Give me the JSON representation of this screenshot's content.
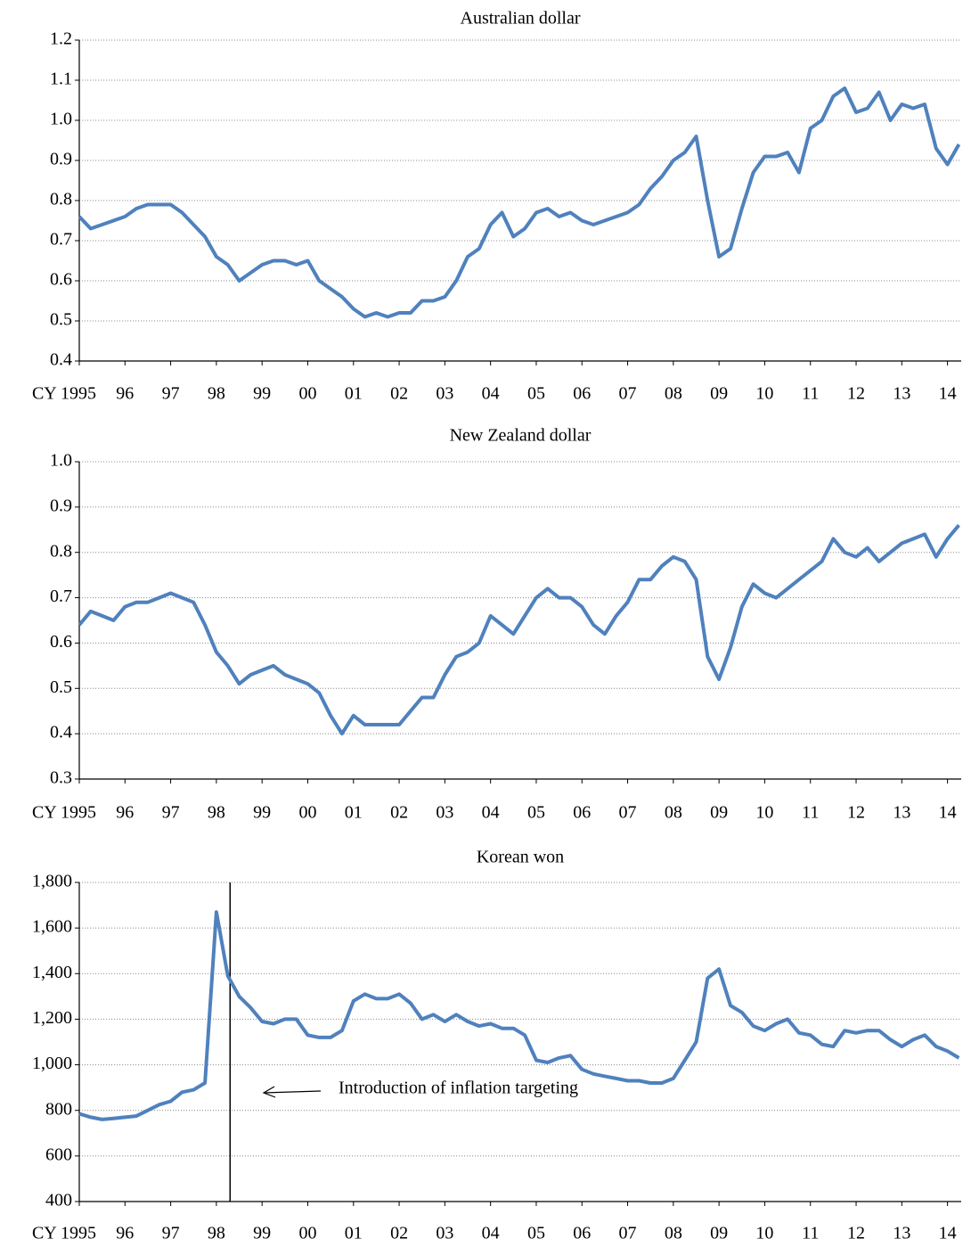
{
  "chart_data": [
    {
      "type": "line",
      "title": "Australian dollar",
      "x": [
        1995,
        1995.25,
        1995.5,
        1995.75,
        1996,
        1996.25,
        1996.5,
        1996.75,
        1997,
        1997.25,
        1997.5,
        1997.75,
        1998,
        1998.25,
        1998.5,
        1998.75,
        1999,
        1999.25,
        1999.5,
        1999.75,
        2000,
        2000.25,
        2000.5,
        2000.75,
        2001,
        2001.25,
        2001.5,
        2001.75,
        2002,
        2002.25,
        2002.5,
        2002.75,
        2003,
        2003.25,
        2003.5,
        2003.75,
        2004,
        2004.25,
        2004.5,
        2004.75,
        2005,
        2005.25,
        2005.5,
        2005.75,
        2006,
        2006.25,
        2006.5,
        2006.75,
        2007,
        2007.25,
        2007.5,
        2007.75,
        2008,
        2008.25,
        2008.5,
        2008.75,
        2009,
        2009.25,
        2009.5,
        2009.75,
        2010,
        2010.25,
        2010.5,
        2010.75,
        2011,
        2011.25,
        2011.5,
        2011.75,
        2012,
        2012.25,
        2012.5,
        2012.75,
        2013,
        2013.25,
        2013.5,
        2013.75,
        2014,
        2014.25
      ],
      "series": [
        {
          "color": "#4f81bd",
          "values": [
            0.76,
            0.73,
            0.74,
            0.75,
            0.76,
            0.78,
            0.79,
            0.79,
            0.79,
            0.77,
            0.74,
            0.71,
            0.66,
            0.64,
            0.6,
            0.62,
            0.64,
            0.65,
            0.65,
            0.64,
            0.65,
            0.6,
            0.58,
            0.56,
            0.53,
            0.51,
            0.52,
            0.51,
            0.52,
            0.52,
            0.55,
            0.55,
            0.56,
            0.6,
            0.66,
            0.68,
            0.74,
            0.77,
            0.71,
            0.73,
            0.77,
            0.78,
            0.76,
            0.77,
            0.75,
            0.74,
            0.75,
            0.76,
            0.77,
            0.79,
            0.83,
            0.86,
            0.9,
            0.92,
            0.96,
            0.8,
            0.66,
            0.68,
            0.78,
            0.87,
            0.91,
            0.91,
            0.92,
            0.87,
            0.98,
            1.0,
            1.06,
            1.08,
            1.02,
            1.03,
            1.07,
            1.0,
            1.04,
            1.03,
            1.04,
            0.93,
            0.89,
            0.94
          ]
        }
      ],
      "xlim": [
        1995,
        2014.3
      ],
      "xticks": [
        {
          "value": 1995,
          "label": "CY 1995"
        },
        {
          "value": 1996,
          "label": "96"
        },
        {
          "value": 1997,
          "label": "97"
        },
        {
          "value": 1998,
          "label": "98"
        },
        {
          "value": 1999,
          "label": "99"
        },
        {
          "value": 2000,
          "label": "00"
        },
        {
          "value": 2001,
          "label": "01"
        },
        {
          "value": 2002,
          "label": "02"
        },
        {
          "value": 2003,
          "label": "03"
        },
        {
          "value": 2004,
          "label": "04"
        },
        {
          "value": 2005,
          "label": "05"
        },
        {
          "value": 2006,
          "label": "06"
        },
        {
          "value": 2007,
          "label": "07"
        },
        {
          "value": 2008,
          "label": "08"
        },
        {
          "value": 2009,
          "label": "09"
        },
        {
          "value": 2010,
          "label": "10"
        },
        {
          "value": 2011,
          "label": "11"
        },
        {
          "value": 2012,
          "label": "12"
        },
        {
          "value": 2013,
          "label": "13"
        },
        {
          "value": 2014,
          "label": "14"
        }
      ],
      "ylim": [
        0.4,
        1.2
      ],
      "yticks": [
        0.4,
        0.5,
        0.6,
        0.7,
        0.8,
        0.9,
        {
          "value": 1,
          "label": "1.0"
        },
        1.1,
        1.2
      ],
      "grid": true
    },
    {
      "type": "line",
      "title": "New Zealand dollar",
      "x": [
        1995,
        1995.25,
        1995.5,
        1995.75,
        1996,
        1996.25,
        1996.5,
        1996.75,
        1997,
        1997.25,
        1997.5,
        1997.75,
        1998,
        1998.25,
        1998.5,
        1998.75,
        1999,
        1999.25,
        1999.5,
        1999.75,
        2000,
        2000.25,
        2000.5,
        2000.75,
        2001,
        2001.25,
        2001.5,
        2001.75,
        2002,
        2002.25,
        2002.5,
        2002.75,
        2003,
        2003.25,
        2003.5,
        2003.75,
        2004,
        2004.25,
        2004.5,
        2004.75,
        2005,
        2005.25,
        2005.5,
        2005.75,
        2006,
        2006.25,
        2006.5,
        2006.75,
        2007,
        2007.25,
        2007.5,
        2007.75,
        2008,
        2008.25,
        2008.5,
        2008.75,
        2009,
        2009.25,
        2009.5,
        2009.75,
        2010,
        2010.25,
        2010.5,
        2010.75,
        2011,
        2011.25,
        2011.5,
        2011.75,
        2012,
        2012.25,
        2012.5,
        2012.75,
        2013,
        2013.25,
        2013.5,
        2013.75,
        2014,
        2014.25
      ],
      "series": [
        {
          "color": "#4f81bd",
          "values": [
            0.64,
            0.67,
            0.66,
            0.65,
            0.68,
            0.69,
            0.69,
            0.7,
            0.71,
            0.7,
            0.69,
            0.64,
            0.58,
            0.55,
            0.51,
            0.53,
            0.54,
            0.55,
            0.53,
            0.52,
            0.51,
            0.49,
            0.44,
            0.4,
            0.44,
            0.42,
            0.42,
            0.42,
            0.42,
            0.45,
            0.48,
            0.48,
            0.53,
            0.57,
            0.58,
            0.6,
            0.66,
            0.64,
            0.62,
            0.66,
            0.7,
            0.72,
            0.7,
            0.7,
            0.68,
            0.64,
            0.62,
            0.66,
            0.69,
            0.74,
            0.74,
            0.77,
            0.79,
            0.78,
            0.74,
            0.57,
            0.52,
            0.59,
            0.68,
            0.73,
            0.71,
            0.7,
            0.72,
            0.74,
            0.76,
            0.78,
            0.83,
            0.8,
            0.79,
            0.81,
            0.78,
            0.8,
            0.82,
            0.83,
            0.84,
            0.79,
            0.83,
            0.86
          ]
        }
      ],
      "xlim": [
        1995,
        2014.3
      ],
      "xticks": [
        {
          "value": 1995,
          "label": "CY 1995"
        },
        {
          "value": 1996,
          "label": "96"
        },
        {
          "value": 1997,
          "label": "97"
        },
        {
          "value": 1998,
          "label": "98"
        },
        {
          "value": 1999,
          "label": "99"
        },
        {
          "value": 2000,
          "label": "00"
        },
        {
          "value": 2001,
          "label": "01"
        },
        {
          "value": 2002,
          "label": "02"
        },
        {
          "value": 2003,
          "label": "03"
        },
        {
          "value": 2004,
          "label": "04"
        },
        {
          "value": 2005,
          "label": "05"
        },
        {
          "value": 2006,
          "label": "06"
        },
        {
          "value": 2007,
          "label": "07"
        },
        {
          "value": 2008,
          "label": "08"
        },
        {
          "value": 2009,
          "label": "09"
        },
        {
          "value": 2010,
          "label": "10"
        },
        {
          "value": 2011,
          "label": "11"
        },
        {
          "value": 2012,
          "label": "12"
        },
        {
          "value": 2013,
          "label": "13"
        },
        {
          "value": 2014,
          "label": "14"
        }
      ],
      "ylim": [
        0.3,
        1.0
      ],
      "yticks": [
        0.3,
        0.4,
        0.5,
        0.6,
        0.7,
        0.8,
        0.9,
        {
          "value": 1,
          "label": "1.0"
        }
      ],
      "grid": true
    },
    {
      "type": "line",
      "title": "Korean won",
      "x": [
        1995,
        1995.25,
        1995.5,
        1995.75,
        1996,
        1996.25,
        1996.5,
        1996.75,
        1997,
        1997.25,
        1997.5,
        1997.75,
        1998,
        1998.25,
        1998.5,
        1998.75,
        1999,
        1999.25,
        1999.5,
        1999.75,
        2000,
        2000.25,
        2000.5,
        2000.75,
        2001,
        2001.25,
        2001.5,
        2001.75,
        2002,
        2002.25,
        2002.5,
        2002.75,
        2003,
        2003.25,
        2003.5,
        2003.75,
        2004,
        2004.25,
        2004.5,
        2004.75,
        2005,
        2005.25,
        2005.5,
        2005.75,
        2006,
        2006.25,
        2006.5,
        2006.75,
        2007,
        2007.25,
        2007.5,
        2007.75,
        2008,
        2008.25,
        2008.5,
        2008.75,
        2009,
        2009.25,
        2009.5,
        2009.75,
        2010,
        2010.25,
        2010.5,
        2010.75,
        2011,
        2011.25,
        2011.5,
        2011.75,
        2012,
        2012.25,
        2012.5,
        2012.75,
        2013,
        2013.25,
        2013.5,
        2013.75,
        2014,
        2014.25
      ],
      "series": [
        {
          "color": "#4f81bd",
          "values": [
            785,
            770,
            760,
            765,
            770,
            775,
            800,
            825,
            840,
            880,
            890,
            920,
            1670,
            1390,
            1300,
            1250,
            1190,
            1180,
            1200,
            1200,
            1130,
            1120,
            1120,
            1150,
            1280,
            1310,
            1290,
            1290,
            1310,
            1270,
            1200,
            1220,
            1190,
            1220,
            1190,
            1170,
            1180,
            1160,
            1160,
            1130,
            1020,
            1010,
            1030,
            1040,
            980,
            960,
            950,
            940,
            930,
            930,
            920,
            920,
            940,
            1020,
            1100,
            1380,
            1420,
            1260,
            1230,
            1170,
            1150,
            1180,
            1200,
            1140,
            1130,
            1090,
            1080,
            1150,
            1140,
            1150,
            1150,
            1110,
            1080,
            1110,
            1130,
            1080,
            1060,
            1030
          ]
        }
      ],
      "xlim": [
        1995,
        2014.3
      ],
      "xticks": [
        {
          "value": 1995,
          "label": "CY 1995"
        },
        {
          "value": 1996,
          "label": "96"
        },
        {
          "value": 1997,
          "label": "97"
        },
        {
          "value": 1998,
          "label": "98"
        },
        {
          "value": 1999,
          "label": "99"
        },
        {
          "value": 2000,
          "label": "00"
        },
        {
          "value": 2001,
          "label": "01"
        },
        {
          "value": 2002,
          "label": "02"
        },
        {
          "value": 2003,
          "label": "03"
        },
        {
          "value": 2004,
          "label": "04"
        },
        {
          "value": 2005,
          "label": "05"
        },
        {
          "value": 2006,
          "label": "06"
        },
        {
          "value": 2007,
          "label": "07"
        },
        {
          "value": 2008,
          "label": "08"
        },
        {
          "value": 2009,
          "label": "09"
        },
        {
          "value": 2010,
          "label": "10"
        },
        {
          "value": 2011,
          "label": "11"
        },
        {
          "value": 2012,
          "label": "12"
        },
        {
          "value": 2013,
          "label": "13"
        },
        {
          "value": 2014,
          "label": "14"
        }
      ],
      "ylim": [
        400,
        1800
      ],
      "yticks": [
        400,
        600,
        800,
        {
          "value": 1000,
          "label": "1,000"
        },
        {
          "value": 1200,
          "label": "1,200"
        },
        {
          "value": 1400,
          "label": "1,400"
        },
        {
          "value": 1600,
          "label": "1,600"
        },
        {
          "value": 1800,
          "label": "1,800"
        }
      ],
      "grid": true,
      "annotation": {
        "text": "Introduction of inflation targeting",
        "x": 1998.3
      }
    }
  ]
}
